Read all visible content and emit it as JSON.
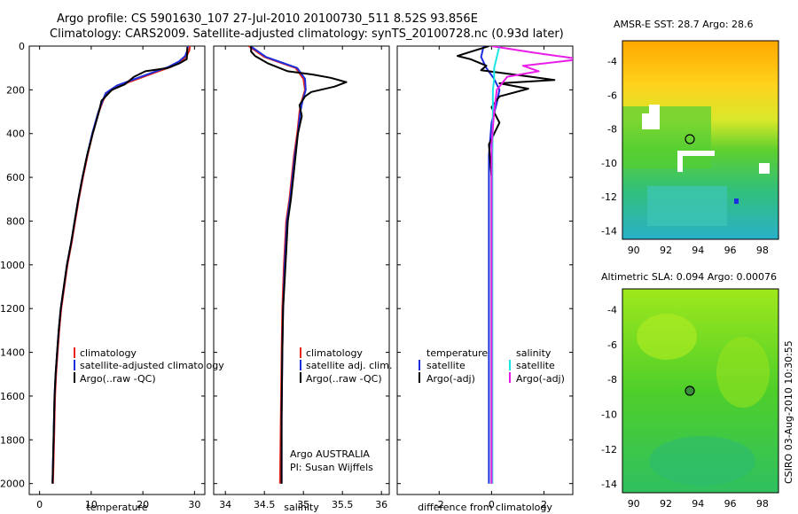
{
  "header": {
    "line1": "Argo profile: CS 5901630_107 27-Jul-2010 20100730_511 8.52S 93.856E",
    "line2": "Climatology: CARS2009. Satellite-adjusted climatology: synTS_20100728.nc (0.93d later)"
  },
  "colors": {
    "climatology": "#e8231a",
    "satellite": "#1c2ee0",
    "argo": "#000000",
    "sal_satellite": "#18e6e6",
    "sal_argo": "#e81ee8"
  },
  "credit": {
    "line1": "Argo AUSTRALIA",
    "line2": "PI: Susan Wijffels"
  },
  "side_label": "CSIRO 03-Aug-2010 10:30:55",
  "chart_data": [
    {
      "type": "line",
      "xlabel": "temperature",
      "ylabel": "",
      "xlim": [
        -2,
        32
      ],
      "ylim": [
        2050,
        0
      ],
      "y_reversed": true,
      "xticks": [
        0,
        10,
        20,
        30
      ],
      "yticks": [
        0,
        200,
        400,
        600,
        800,
        1000,
        1200,
        1400,
        1600,
        1800,
        2000
      ],
      "legend": [
        "climatology",
        "satellite-adjusted climatology",
        "Argo(..raw -QC)"
      ],
      "series": [
        {
          "name": "climatology",
          "color": "#e8231a",
          "x": [
            29.1,
            29.0,
            28.5,
            27.5,
            25.5,
            22.5,
            19.0,
            15.5,
            13.0,
            12.3,
            11.5,
            10.3,
            9.3,
            8.4,
            7.6,
            6.9,
            6.2,
            5.4,
            4.8,
            4.2,
            3.8,
            3.5,
            3.2,
            3.0,
            2.8,
            2.6
          ],
          "y": [
            0,
            20,
            45,
            70,
            95,
            120,
            150,
            180,
            215,
            250,
            300,
            400,
            500,
            600,
            700,
            800,
            900,
            1000,
            1100,
            1200,
            1300,
            1400,
            1500,
            1600,
            1800,
            2000
          ]
        },
        {
          "name": "satellite-adjusted climatology",
          "color": "#1c2ee0",
          "x": [
            28.7,
            28.6,
            28.2,
            27.0,
            25.0,
            22.0,
            18.5,
            15.0,
            12.8,
            12.2,
            11.4,
            10.2,
            9.2,
            8.3,
            7.5,
            6.8,
            6.1,
            5.3,
            4.7,
            4.1,
            3.7,
            3.4,
            3.1,
            2.9,
            2.7,
            2.5
          ],
          "y": [
            0,
            20,
            45,
            70,
            95,
            120,
            150,
            180,
            215,
            250,
            300,
            400,
            500,
            600,
            700,
            800,
            900,
            1000,
            1100,
            1200,
            1300,
            1400,
            1500,
            1600,
            1800,
            2000
          ]
        },
        {
          "name": "Argo(..raw -QC)",
          "color": "#000000",
          "x": [
            28.6,
            28.6,
            28.5,
            27.0,
            24.8,
            20.5,
            18.3,
            16.5,
            14.0,
            13.2,
            12.0,
            11.5,
            10.3,
            9.2,
            8.3,
            7.5,
            6.8,
            6.1,
            5.3,
            4.7,
            4.1,
            3.7,
            3.4,
            3.1,
            2.9,
            2.7,
            2.5
          ],
          "y": [
            5,
            30,
            60,
            80,
            100,
            115,
            140,
            175,
            200,
            220,
            250,
            300,
            400,
            500,
            600,
            700,
            800,
            900,
            1000,
            1100,
            1200,
            1300,
            1400,
            1500,
            1600,
            1800,
            2000
          ]
        }
      ]
    },
    {
      "type": "line",
      "xlabel": "salinity",
      "ylabel": "",
      "xlim": [
        33.85,
        36.1
      ],
      "ylim": [
        2050,
        0
      ],
      "y_reversed": true,
      "xticks": [
        34,
        34.5,
        35,
        35.5,
        36
      ],
      "xticklabels": [
        "34",
        "34.5",
        "35",
        "35.5",
        "36"
      ],
      "legend": [
        "climatology",
        "satellite adj. clim.",
        "Argo(..raw -QC)"
      ],
      "series": [
        {
          "name": "climatology",
          "color": "#e8231a",
          "x": [
            34.3,
            34.4,
            34.5,
            34.7,
            34.9,
            35.0,
            35.02,
            34.98,
            34.95,
            34.92,
            34.88,
            34.85,
            34.82,
            34.78,
            34.75,
            34.73,
            34.72,
            34.71,
            34.7
          ],
          "y": [
            0,
            25,
            50,
            75,
            100,
            150,
            200,
            250,
            300,
            400,
            500,
            600,
            700,
            800,
            1000,
            1200,
            1400,
            1700,
            2000
          ]
        },
        {
          "name": "satellite adj. clim.",
          "color": "#1c2ee0",
          "x": [
            34.32,
            34.42,
            34.52,
            34.72,
            34.92,
            35.02,
            35.03,
            34.99,
            34.96,
            34.93,
            34.89,
            34.86,
            34.83,
            34.79,
            34.76,
            34.74,
            34.73,
            34.72,
            34.72
          ],
          "y": [
            0,
            25,
            50,
            75,
            100,
            150,
            200,
            250,
            300,
            400,
            500,
            600,
            700,
            800,
            1000,
            1200,
            1400,
            1700,
            2000
          ]
        },
        {
          "name": "Argo(..raw -QC)",
          "color": "#000000",
          "x": [
            34.33,
            34.33,
            34.38,
            34.55,
            34.8,
            35.12,
            35.35,
            35.55,
            35.4,
            35.1,
            35.02,
            34.95,
            34.98,
            34.93,
            34.9,
            34.87,
            34.84,
            34.8,
            34.77,
            34.74,
            34.73,
            34.72,
            34.72
          ],
          "y": [
            0,
            25,
            45,
            80,
            115,
            130,
            145,
            165,
            185,
            210,
            230,
            270,
            320,
            400,
            500,
            600,
            700,
            800,
            1000,
            1200,
            1400,
            1700,
            2000
          ]
        }
      ]
    },
    {
      "type": "line",
      "xlabel": "difference from climatology",
      "ylabel": "",
      "xlim": [
        -3.6,
        3.1
      ],
      "ylim": [
        2050,
        0
      ],
      "y_reversed": true,
      "xticks": [
        -2,
        0,
        2
      ],
      "legend_left_title": "temperature",
      "legend_right_title": "salinity",
      "legend": [
        "satellite",
        "Argo(-adj)",
        "satellite",
        "Argo(-adj)"
      ],
      "series": [
        {
          "name": "temperature satellite",
          "color": "#1c2ee0",
          "x": [
            -0.3,
            -0.4,
            -0.2,
            0.1,
            0.3,
            0.2,
            0.0,
            -0.1,
            -0.1,
            -0.1,
            -0.1,
            -0.1,
            -0.1,
            -0.1,
            -0.1
          ],
          "y": [
            0,
            50,
            100,
            150,
            200,
            260,
            350,
            500,
            700,
            900,
            1100,
            1300,
            1500,
            1800,
            2000
          ]
        },
        {
          "name": "temperature Argo(-adj)",
          "color": "#000000",
          "x": [
            -0.1,
            -1.3,
            -0.8,
            -0.2,
            -0.4,
            1.5,
            2.4,
            0.3,
            1.4,
            0.3,
            0.0,
            0.3,
            -0.1,
            0.0,
            0.0,
            0.0,
            0.0,
            0.0
          ],
          "y": [
            0,
            45,
            60,
            90,
            110,
            140,
            155,
            170,
            195,
            230,
            280,
            350,
            450,
            600,
            900,
            1200,
            1600,
            2000
          ]
        },
        {
          "name": "salinity satellite",
          "color": "#18e6e6",
          "x": [
            0.3,
            0.2,
            0.1,
            0.1,
            0.05,
            0.05,
            0.03,
            0.03,
            0.03,
            0.03
          ],
          "y": [
            0,
            50,
            100,
            150,
            200,
            300,
            500,
            800,
            1200,
            2000
          ]
        },
        {
          "name": "salinity Argo(-adj)",
          "color": "#e81ee8",
          "x": [
            0.0,
            1.6,
            2.5,
            3.4,
            1.2,
            1.8,
            0.6,
            0.2,
            0.1,
            0.0,
            0.0,
            0.0,
            0.0
          ],
          "y": [
            0,
            30,
            45,
            60,
            90,
            115,
            140,
            200,
            300,
            450,
            700,
            1200,
            2000
          ]
        }
      ]
    },
    {
      "type": "heatmap",
      "title": "AMSR-E SST: 28.7 Argo: 28.6",
      "xlim": [
        89.3,
        99
      ],
      "ylim": [
        -14.5,
        -2.8
      ],
      "xticks": [
        90,
        92,
        94,
        96,
        98
      ],
      "yticks": [
        -4,
        -6,
        -8,
        -10,
        -12,
        -14
      ],
      "marker": {
        "lon": 93.856,
        "lat": -8.52
      }
    },
    {
      "type": "heatmap",
      "title": "Altimetric SLA: 0.094 Argo: 0.00076",
      "xlim": [
        89.3,
        99
      ],
      "ylim": [
        -14.5,
        -2.8
      ],
      "xticks": [
        90,
        92,
        94,
        96,
        98
      ],
      "yticks": [
        -4,
        -6,
        -8,
        -10,
        -12,
        -14
      ],
      "marker": {
        "lon": 93.856,
        "lat": -8.52
      }
    }
  ]
}
